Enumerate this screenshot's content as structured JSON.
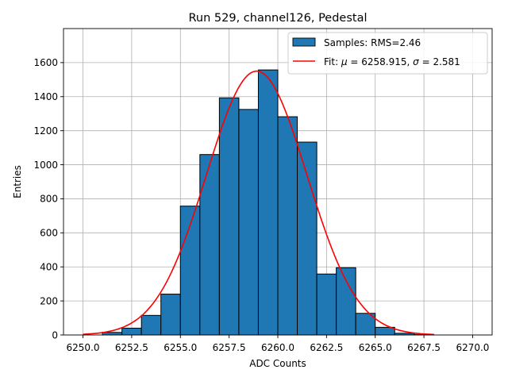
{
  "chart_data": {
    "type": "bar",
    "title": "Run 529, channel126, Pedestal",
    "xlabel": "ADC Counts",
    "ylabel": "Entries",
    "xlim": [
      6249.0,
      6271.0
    ],
    "ylim": [
      0,
      1800
    ],
    "xticks": [
      6250.0,
      6252.5,
      6255.0,
      6257.5,
      6260.0,
      6262.5,
      6265.0,
      6267.5,
      6270.0
    ],
    "xtick_labels": [
      "6250.0",
      "6252.5",
      "6255.0",
      "6257.5",
      "6260.0",
      "6262.5",
      "6265.0",
      "6267.5",
      "6270.0"
    ],
    "yticks": [
      0,
      200,
      400,
      600,
      800,
      1000,
      1200,
      1400,
      1600
    ],
    "ytick_labels": [
      "0",
      "200",
      "400",
      "600",
      "800",
      "1000",
      "1200",
      "1400",
      "1600"
    ],
    "grid": true,
    "legend_position": "top-right",
    "histogram": {
      "name": "Samples: RMS=2.46",
      "bin_edges": [
        6250,
        6251,
        6252,
        6253,
        6254,
        6255,
        6256,
        6257,
        6258,
        6259,
        6260,
        6261,
        6262,
        6263,
        6264,
        6265,
        6266,
        6267,
        6268
      ],
      "counts": [
        0,
        15,
        40,
        115,
        240,
        757,
        1060,
        1393,
        1325,
        1557,
        1282,
        1133,
        358,
        395,
        127,
        45,
        10,
        3
      ],
      "color": "#1f77b4",
      "edge_color": "#000000"
    },
    "fit": {
      "name": "Fit: μ = 6258.915, σ = 2.581",
      "name_parts": {
        "prefix": "Fit: ",
        "mu_symbol": "μ",
        "mu_text": " = 6258.915, ",
        "sigma_symbol": "σ",
        "sigma_text": " = 2.581"
      },
      "type": "gaussian",
      "mu": 6258.915,
      "sigma": 2.581,
      "amplitude": 1550,
      "x_range": [
        6250,
        6268
      ],
      "color": "#ff0000"
    }
  }
}
